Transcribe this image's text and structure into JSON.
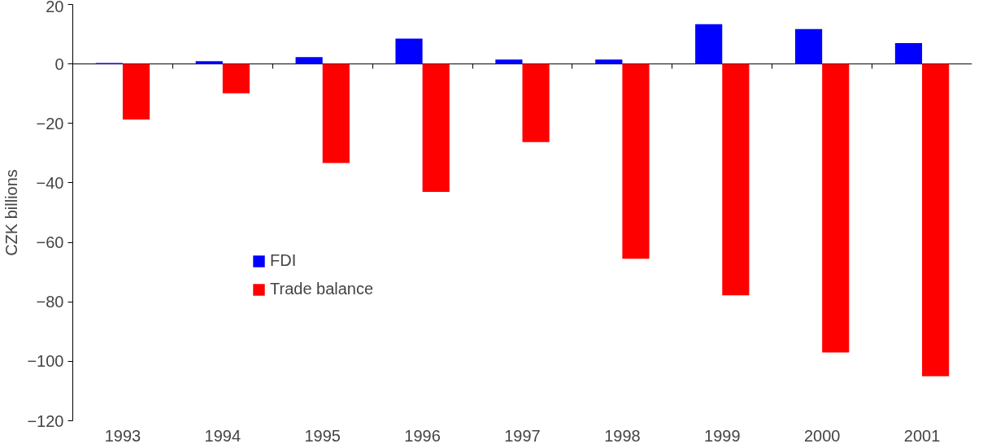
{
  "chart_data": {
    "type": "bar",
    "ylabel": "CZK billions",
    "categories": [
      "1993",
      "1994",
      "1995",
      "1996",
      "1997",
      "1998",
      "1999",
      "2000",
      "2001"
    ],
    "series": [
      {
        "name": "FDI",
        "color": "#0000ff",
        "values": [
          0.3,
          0.9,
          2.3,
          8.5,
          1.5,
          1.5,
          13.4,
          11.7,
          7.0
        ]
      },
      {
        "name": "Trade balance",
        "color": "#ff0000",
        "values": [
          -18.7,
          -9.9,
          -33.3,
          -43,
          -26.3,
          -65.5,
          -77.8,
          -97,
          -105
        ]
      }
    ],
    "ylim": [
      -120,
      20
    ],
    "yticks": [
      -120,
      -100,
      -80,
      -60,
      -40,
      -20,
      0,
      20
    ],
    "grid": false,
    "ref_lines": [
      {
        "axis": "y",
        "value": 0,
        "color": "#000000"
      }
    ],
    "legend": "left"
  }
}
